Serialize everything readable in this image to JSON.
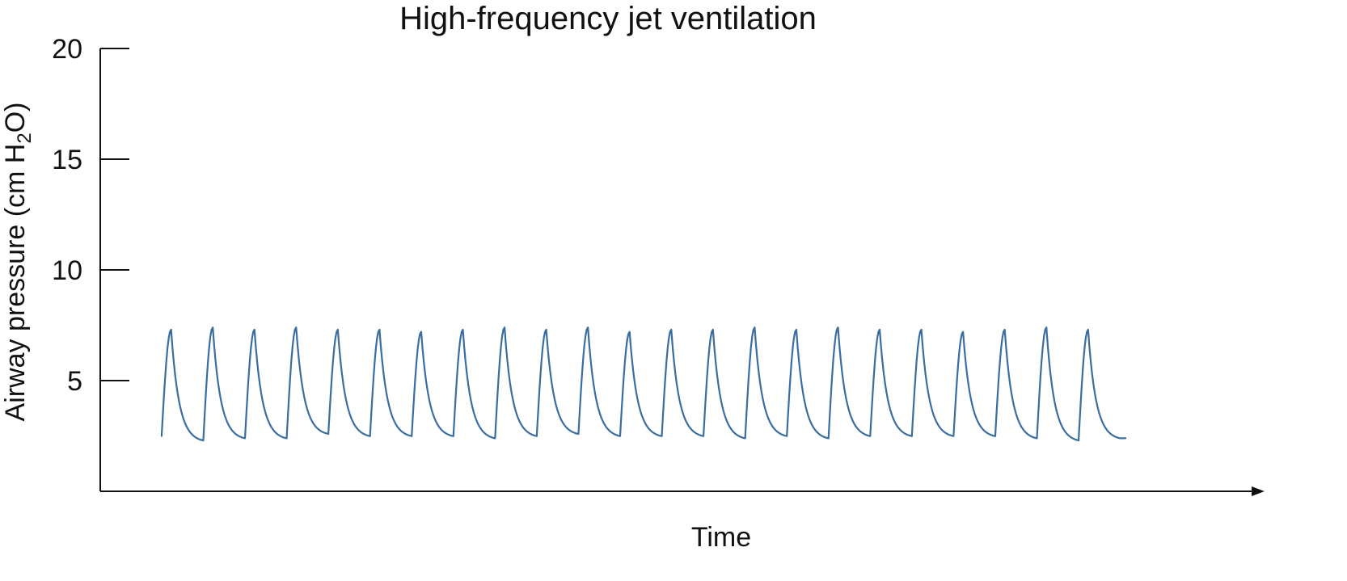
{
  "chart_data": {
    "type": "line",
    "title": "High-frequency jet ventilation",
    "xlabel": "Time",
    "ylabel_main": "Airway pressure (cm H",
    "ylabel_subscript": "2",
    "ylabel_tail": "O)",
    "ylim": [
      0,
      20
    ],
    "xlim": [
      0,
      100
    ],
    "y_ticks": [
      {
        "value": 20,
        "label": "20"
      },
      {
        "value": 15,
        "label": "15"
      },
      {
        "value": 10,
        "label": "10"
      },
      {
        "value": 5,
        "label": "5"
      }
    ],
    "x_axis_arrow": true,
    "grid": false,
    "legend": "none",
    "colors": {
      "series": "#3a6ea0",
      "axis": "#111111"
    },
    "series": [
      {
        "cycle_count": 23,
        "cycle_period": 3.6,
        "x_start": 5.3,
        "start_value": 2.5,
        "peaks": [
          7.3,
          7.4,
          7.3,
          7.4,
          7.3,
          7.3,
          7.2,
          7.3,
          7.4,
          7.3,
          7.4,
          7.2,
          7.3,
          7.3,
          7.4,
          7.3,
          7.4,
          7.3,
          7.3,
          7.2,
          7.3,
          7.4,
          7.3
        ],
        "troughs": [
          2.3,
          2.4,
          2.4,
          2.6,
          2.5,
          2.5,
          2.5,
          2.4,
          2.5,
          2.6,
          2.5,
          2.5,
          2.5,
          2.4,
          2.5,
          2.4,
          2.5,
          2.5,
          2.5,
          2.5,
          2.4,
          2.3,
          2.4
        ],
        "end_value": 2.4
      }
    ]
  }
}
